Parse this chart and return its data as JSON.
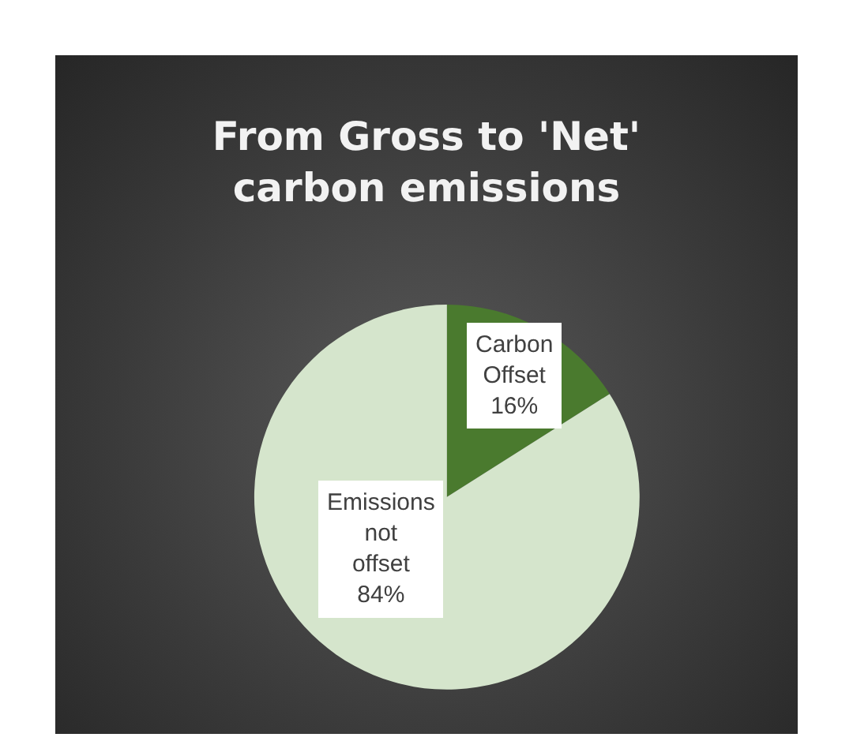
{
  "chart_data": {
    "type": "pie",
    "title": "From Gross to 'Net' carbon emissions",
    "categories": [
      "Carbon Offset",
      "Emissions not offset"
    ],
    "values": [
      16,
      84
    ],
    "colors": [
      "#4a7a2e",
      "#d5e5cc"
    ],
    "value_labels": [
      "16%",
      "84%"
    ],
    "legend": false
  }
}
